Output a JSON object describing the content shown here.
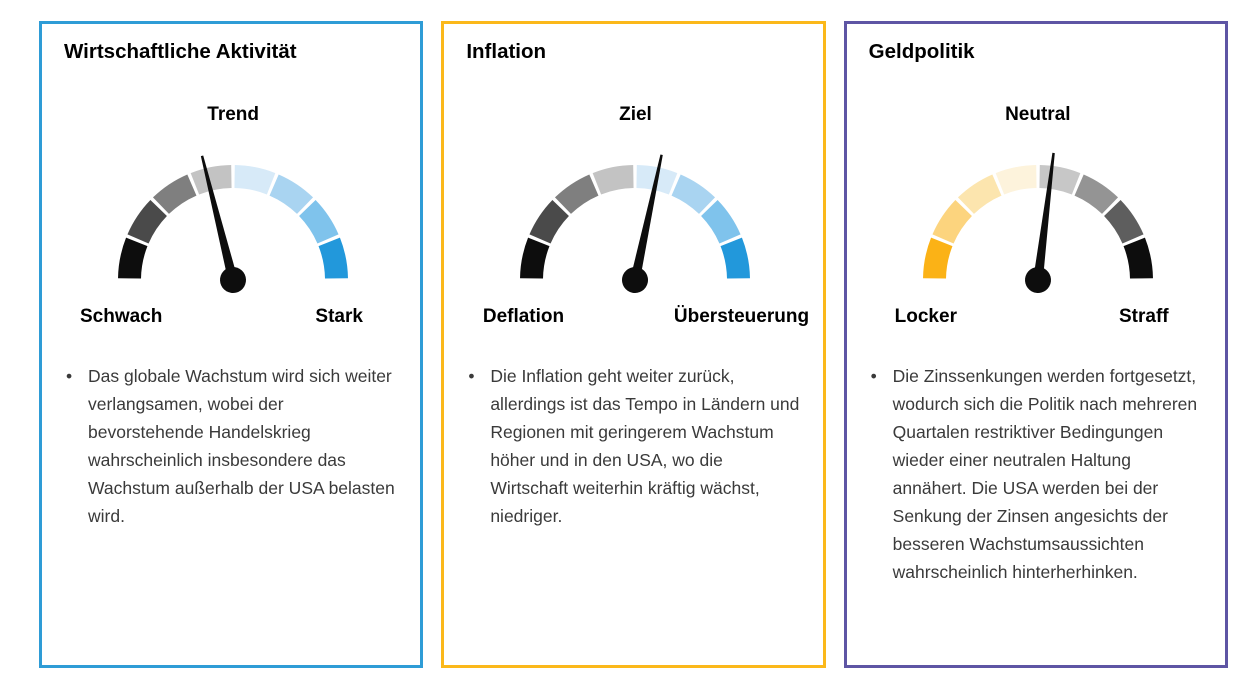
{
  "ui": {
    "bullet_glyph": "•"
  },
  "cards": [
    {
      "title": "Wirtschaftliche Aktivität",
      "accent_color": "#2E9CD6",
      "bullet": "Das globale Wachstum wird sich weiter verlangsamen, wobei der bevorstehende Handelskrieg wahrscheinlich insbesondere das Wachstum außerhalb der USA belasten wird.",
      "gauge": {
        "top_label": "Trend",
        "left_label": "Schwach",
        "right_label": "Stark",
        "needle_angle_deg": -14,
        "needle_color": "#0d0d0d",
        "segment_colors": [
          "#0D0D0D",
          "#4A4A4A",
          "#7F7F7F",
          "#C3C3C3",
          "#D7EAF8",
          "#A9D4F1",
          "#7FC3EC",
          "#2298DB"
        ]
      }
    },
    {
      "title": "Inflation",
      "accent_color": "#FBB81A",
      "bullet": "Die Inflation geht weiter zurück, allerdings ist das Tempo in Ländern und Regionen mit geringerem Wachstum höher und in den USA, wo die Wirtschaft weiterhin kräftig wächst, niedriger.",
      "gauge": {
        "top_label": "Ziel",
        "left_label": "Deflation",
        "right_label": "Übersteuerung",
        "needle_angle_deg": 12,
        "needle_color": "#0d0d0d",
        "segment_colors": [
          "#0D0D0D",
          "#4A4A4A",
          "#7F7F7F",
          "#C3C3C3",
          "#D7EAF8",
          "#A9D4F1",
          "#7FC3EC",
          "#2298DB"
        ]
      }
    },
    {
      "title": "Geldpolitik",
      "accent_color": "#5E55A4",
      "bullet": "Die Zinssenkungen werden fortgesetzt, wodurch sich die Politik nach mehreren Quartalen restriktiver Bedingungen wieder einer neutralen Haltung annähert. Die USA werden bei der Senkung der Zinsen angesichts der besseren Wachstumsaussichten wahrscheinlich hinterherhinken.",
      "gauge": {
        "top_label": "Neutral",
        "left_label": "Locker",
        "right_label": "Straff",
        "needle_angle_deg": 7,
        "needle_color": "#0d0d0d",
        "segment_colors": [
          "#FBB216",
          "#FCD47E",
          "#FCE5AE",
          "#FDF3DC",
          "#C7C7C7",
          "#949494",
          "#5E5E5E",
          "#0D0D0D"
        ]
      }
    }
  ],
  "chart_data": [
    {
      "type": "gauge",
      "title": "Wirtschaftliche Aktivität",
      "arc_span_deg": 180,
      "segments": 8,
      "segment_colors": [
        "#0D0D0D",
        "#4A4A4A",
        "#7F7F7F",
        "#C3C3C3",
        "#D7EAF8",
        "#A9D4F1",
        "#7FC3EC",
        "#2298DB"
      ],
      "scale_labels": {
        "left": "Schwach",
        "top": "Trend",
        "right": "Stark"
      },
      "needle_angle_deg_from_vertical": -14,
      "annotation": "Das globale Wachstum wird sich weiter verlangsamen, wobei der bevorstehende Handelskrieg wahrscheinlich insbesondere das Wachstum außerhalb der USA belasten wird."
    },
    {
      "type": "gauge",
      "title": "Inflation",
      "arc_span_deg": 180,
      "segments": 8,
      "segment_colors": [
        "#0D0D0D",
        "#4A4A4A",
        "#7F7F7F",
        "#C3C3C3",
        "#D7EAF8",
        "#A9D4F1",
        "#7FC3EC",
        "#2298DB"
      ],
      "scale_labels": {
        "left": "Deflation",
        "top": "Ziel",
        "right": "Übersteuerung"
      },
      "needle_angle_deg_from_vertical": 12,
      "annotation": "Die Inflation geht weiter zurück, allerdings ist das Tempo in Ländern und Regionen mit geringerem Wachstum höher und in den USA, wo die Wirtschaft weiterhin kräftig wächst, niedriger."
    },
    {
      "type": "gauge",
      "title": "Geldpolitik",
      "arc_span_deg": 180,
      "segments": 8,
      "segment_colors": [
        "#FBB216",
        "#FCD47E",
        "#FCE5AE",
        "#FDF3DC",
        "#C7C7C7",
        "#949494",
        "#5E5E5E",
        "#0D0D0D"
      ],
      "scale_labels": {
        "left": "Locker",
        "top": "Neutral",
        "right": "Straff"
      },
      "needle_angle_deg_from_vertical": 7,
      "annotation": "Die Zinssenkungen werden fortgesetzt, wodurch sich die Politik nach mehreren Quartalen restriktiver Bedingungen wieder einer neutralen Haltung annähert. Die USA werden bei der Senkung der Zinsen angesichts der besseren Wachstumsaussichten wahrscheinlich hinterherhinken."
    }
  ]
}
